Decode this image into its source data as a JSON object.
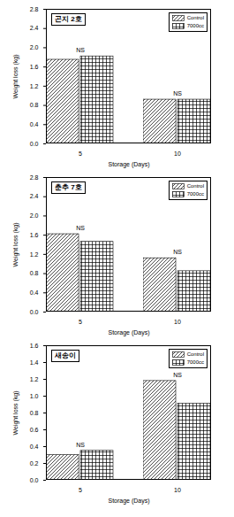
{
  "chart_data": [
    {
      "type": "bar",
      "title": "곤지 2호",
      "categories": [
        "5",
        "10"
      ],
      "series": [
        {
          "name": "Control",
          "color": "#000000",
          "values": [
            1.75,
            0.92
          ]
        },
        {
          "name": "7000cc",
          "color": "#000000",
          "values": [
            1.82,
            0.92
          ]
        }
      ],
      "x_label": "Storage (Days)",
      "y_label": "Weight loss (kg)",
      "ylim": [
        0,
        2.8
      ],
      "yticks": [
        {
          "value": 0,
          "label": "0.0"
        },
        {
          "value": 0.4,
          "label": "0.4"
        },
        {
          "value": 0.8,
          "label": "0.8"
        },
        {
          "value": 1.2,
          "label": "1.2"
        },
        {
          "value": 1.6,
          "label": "1.6"
        },
        {
          "value": 2.0,
          "label": "2.0"
        },
        {
          "value": 2.4,
          "label": "2.4"
        },
        {
          "value": 2.8,
          "label": "2.8"
        }
      ],
      "legend": "upper right",
      "annotations": [
        {
          "category": "5",
          "text": "NS"
        },
        {
          "category": "10",
          "text": "NS"
        }
      ]
    },
    {
      "type": "bar",
      "title": "춘추 7호",
      "categories": [
        "5",
        "10"
      ],
      "series": [
        {
          "name": "Control",
          "color": "#000000",
          "values": [
            1.62,
            1.12
          ]
        },
        {
          "name": "7000cc",
          "color": "#000000",
          "values": [
            1.46,
            0.85
          ]
        }
      ],
      "x_label": "Storage (Days)",
      "y_label": "Weight loss (kg)",
      "ylim": [
        0,
        2.8
      ],
      "yticks": [
        {
          "value": 0,
          "label": "0.0"
        },
        {
          "value": 0.4,
          "label": "0.4"
        },
        {
          "value": 0.8,
          "label": "0.8"
        },
        {
          "value": 1.2,
          "label": "1.2"
        },
        {
          "value": 1.6,
          "label": "1.6"
        },
        {
          "value": 2.0,
          "label": "2.0"
        },
        {
          "value": 2.4,
          "label": "2.4"
        },
        {
          "value": 2.8,
          "label": "2.8"
        }
      ],
      "legend": "upper right",
      "annotations": [
        {
          "category": "5",
          "text": "NS"
        },
        {
          "category": "10",
          "text": "NS"
        }
      ]
    },
    {
      "type": "bar",
      "title": "새송이",
      "categories": [
        "5",
        "10"
      ],
      "series": [
        {
          "name": "Control",
          "color": "#000000",
          "values": [
            0.3,
            1.18
          ]
        },
        {
          "name": "7000cc",
          "color": "#000000",
          "values": [
            0.35,
            0.91
          ]
        }
      ],
      "x_label": "Storage (Days)",
      "y_label": "Weight loss (kg)",
      "ylim": [
        0,
        1.6
      ],
      "yticks": [
        {
          "value": 0,
          "label": "0.0"
        },
        {
          "value": 0.2,
          "label": "0.2"
        },
        {
          "value": 0.4,
          "label": "0.4"
        },
        {
          "value": 0.6,
          "label": "0.6"
        },
        {
          "value": 0.8,
          "label": "0.8"
        },
        {
          "value": 1.0,
          "label": "1.0"
        },
        {
          "value": 1.2,
          "label": "1.2"
        },
        {
          "value": 1.4,
          "label": "1.4"
        },
        {
          "value": 1.6,
          "label": "1.6"
        }
      ],
      "legend": "upper right",
      "annotations": [
        {
          "category": "5",
          "text": "NS"
        },
        {
          "category": "10",
          "text": "NS"
        }
      ]
    }
  ]
}
